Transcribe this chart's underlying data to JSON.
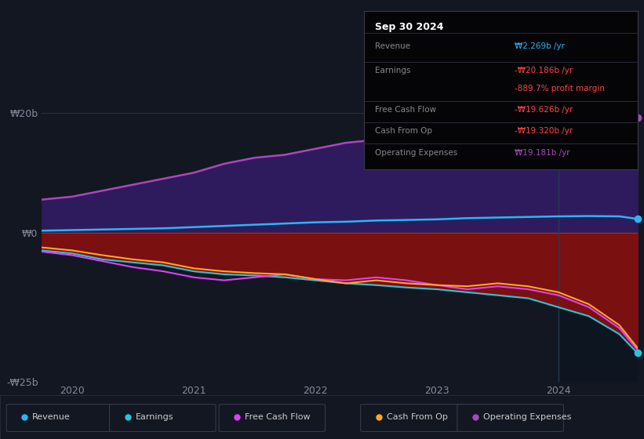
{
  "background_color": "#131722",
  "title": "Sep 30 2024",
  "x_years": [
    2019.75,
    2020.0,
    2020.25,
    2020.5,
    2020.75,
    2021.0,
    2021.25,
    2021.5,
    2021.75,
    2022.0,
    2022.25,
    2022.5,
    2022.75,
    2023.0,
    2023.25,
    2023.5,
    2023.75,
    2024.0,
    2024.25,
    2024.5,
    2024.65
  ],
  "revenue": [
    0.3,
    0.4,
    0.5,
    0.6,
    0.7,
    0.9,
    1.1,
    1.3,
    1.5,
    1.7,
    1.8,
    2.0,
    2.1,
    2.2,
    2.4,
    2.5,
    2.6,
    2.7,
    2.75,
    2.7,
    2.269
  ],
  "earnings": [
    -3.0,
    -3.5,
    -4.5,
    -5.0,
    -5.5,
    -6.5,
    -7.0,
    -7.2,
    -7.5,
    -8.0,
    -8.5,
    -8.8,
    -9.2,
    -9.5,
    -10.0,
    -10.5,
    -11.0,
    -12.5,
    -14.0,
    -17.0,
    -20.186
  ],
  "free_cash_flow": [
    -3.2,
    -3.8,
    -4.8,
    -5.8,
    -6.5,
    -7.5,
    -8.0,
    -7.5,
    -7.0,
    -7.8,
    -8.0,
    -7.5,
    -8.0,
    -8.8,
    -9.5,
    -9.0,
    -9.5,
    -10.5,
    -12.5,
    -16.0,
    -19.626
  ],
  "cash_from_op": [
    -2.5,
    -3.0,
    -3.8,
    -4.5,
    -5.0,
    -6.0,
    -6.5,
    -6.8,
    -7.0,
    -7.8,
    -8.5,
    -8.0,
    -8.5,
    -8.8,
    -9.0,
    -8.5,
    -9.0,
    -10.0,
    -12.0,
    -15.5,
    -19.32
  ],
  "op_expenses": [
    5.5,
    6.0,
    7.0,
    8.0,
    9.0,
    10.0,
    11.5,
    12.5,
    13.0,
    14.0,
    15.0,
    15.5,
    15.0,
    14.5,
    14.5,
    14.0,
    14.5,
    15.5,
    17.5,
    18.8,
    19.181
  ],
  "ylim": [
    -25,
    22
  ],
  "yticks": [
    -25,
    0,
    20
  ],
  "ytick_labels": [
    "-₩25b",
    "₩0",
    "₩20b"
  ],
  "xtick_years": [
    2020,
    2021,
    2022,
    2023,
    2024
  ],
  "revenue_color": "#29b6f6",
  "earnings_color": "#26c6da",
  "free_cash_flow_color": "#e040fb",
  "cash_from_op_color": "#ffa726",
  "op_expenses_color": "#ab47bc",
  "op_expenses_fill_top": "#3a1f6e",
  "op_expenses_fill_bot": "#1a0e40",
  "earnings_fill_color": "#8b1a1a",
  "vline_x": 2024.0,
  "vline_color": "#1e2a3a",
  "info_box": {
    "rows": [
      {
        "label": "Revenue",
        "value": "₩2.269b /yr",
        "value_color": "#29b6f6"
      },
      {
        "label": "Earnings",
        "value": "-₩20.186b /yr",
        "value_color": "#ff4444"
      },
      {
        "label": "",
        "value": "-889.7% profit margin",
        "value_color": "#ff4444"
      },
      {
        "label": "Free Cash Flow",
        "value": "-₩19.626b /yr",
        "value_color": "#ff4444"
      },
      {
        "label": "Cash From Op",
        "value": "-₩19.320b /yr",
        "value_color": "#ff4444"
      },
      {
        "label": "Operating Expenses",
        "value": "₩19.181b /yr",
        "value_color": "#ab47bc"
      }
    ]
  },
  "legend_items": [
    {
      "label": "Revenue",
      "color": "#29b6f6"
    },
    {
      "label": "Earnings",
      "color": "#26c6da"
    },
    {
      "label": "Free Cash Flow",
      "color": "#e040fb"
    },
    {
      "label": "Cash From Op",
      "color": "#ffa726"
    },
    {
      "label": "Operating Expenses",
      "color": "#ab47bc"
    }
  ]
}
